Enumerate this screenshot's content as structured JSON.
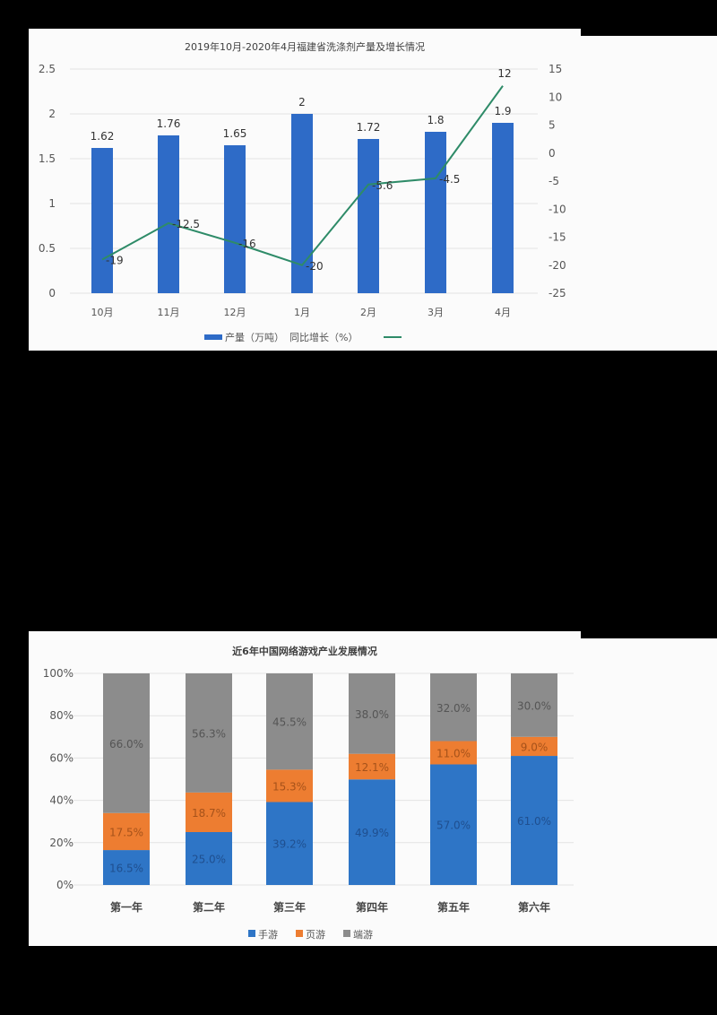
{
  "chart_data": [
    {
      "type": "bar+line",
      "title": "2019年10月-2020年4月福建省洗涤剂产量及增长情况",
      "categories": [
        "10月",
        "11月",
        "12月",
        "1月",
        "2月",
        "3月",
        "4月"
      ],
      "series": [
        {
          "name": "产量（万吨）",
          "type": "bar",
          "axis": "left",
          "color": "#2e6bc7",
          "values": [
            1.62,
            1.76,
            1.65,
            2,
            1.72,
            1.8,
            1.9
          ]
        },
        {
          "name": "同比增长（%）",
          "type": "line",
          "axis": "right",
          "color": "#2e8b68",
          "values": [
            -19,
            -12.5,
            -16,
            -20,
            -5.6,
            -4.5,
            12
          ]
        }
      ],
      "bar_labels": [
        "1.62",
        "1.76",
        "1.65",
        "2",
        "1.72",
        "1.8",
        "1.9"
      ],
      "line_labels": [
        "-19",
        "-12.5",
        "-16",
        "-20",
        "-5.6",
        "-4.5",
        "12"
      ],
      "left_axis": {
        "ylim": [
          0,
          2.5
        ],
        "ticks": [
          "0",
          "0.5",
          "1",
          "1.5",
          "2",
          "2.5"
        ]
      },
      "right_axis": {
        "ylim": [
          -25,
          15
        ],
        "ticks": [
          "-25",
          "-20",
          "-15",
          "-10",
          "-5",
          "0",
          "5",
          "10",
          "15"
        ]
      },
      "xlabel": "",
      "ylabel": "",
      "grid": true,
      "legend_position": "bottom",
      "legend": [
        "产量（万吨）",
        "同比增长（%）"
      ]
    },
    {
      "type": "bar",
      "stacked": true,
      "percent": true,
      "title": "近6年中国网络游戏产业发展情况",
      "categories": [
        "第一年",
        "第二年",
        "第三年",
        "第四年",
        "第五年",
        "第六年"
      ],
      "series": [
        {
          "name": "手游",
          "color": "#2e75c6",
          "values": [
            16.5,
            25.0,
            39.2,
            49.9,
            57.0,
            61.0
          ]
        },
        {
          "name": "页游",
          "color": "#ed7d31",
          "values": [
            17.5,
            18.7,
            15.3,
            12.1,
            11.0,
            9.0
          ]
        },
        {
          "name": "端游",
          "color": "#8c8c8c",
          "values": [
            66.0,
            56.3,
            45.5,
            38.0,
            32.0,
            30.0
          ]
        }
      ],
      "labels": [
        [
          "16.5%",
          "25.0%",
          "39.2%",
          "49.9%",
          "57.0%",
          "61.0%"
        ],
        [
          "17.5%",
          "18.7%",
          "15.3%",
          "12.1%",
          "11.0%",
          "9.0%"
        ],
        [
          "66.0%",
          "56.3%",
          "45.5%",
          "38.0%",
          "32.0%",
          "30.0%"
        ]
      ],
      "ylim": [
        0,
        100
      ],
      "y_ticks": [
        "0%",
        "20%",
        "40%",
        "60%",
        "80%",
        "100%"
      ],
      "xlabel": "",
      "ylabel": "",
      "grid": true,
      "legend_position": "bottom",
      "legend": [
        "手游",
        "页游",
        "端游"
      ]
    }
  ]
}
